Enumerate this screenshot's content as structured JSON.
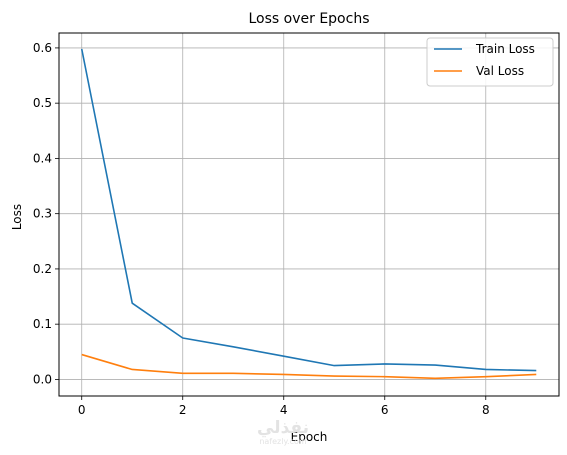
{
  "chart_data": {
    "type": "line",
    "title": "Loss over Epochs",
    "xlabel": "Epoch",
    "ylabel": "Loss",
    "x": [
      0,
      1,
      2,
      3,
      4,
      5,
      6,
      7,
      8,
      9
    ],
    "xlim": [
      -0.45,
      9.45
    ],
    "ylim": [
      -0.03,
      0.627
    ],
    "xticks": [
      0,
      2,
      4,
      6,
      8
    ],
    "yticks": [
      0.0,
      0.1,
      0.2,
      0.3,
      0.4,
      0.5,
      0.6
    ],
    "xtick_labels": [
      "0",
      "2",
      "4",
      "6",
      "8"
    ],
    "ytick_labels": [
      "0.0",
      "0.1",
      "0.2",
      "0.3",
      "0.4",
      "0.5",
      "0.6"
    ],
    "grid": true,
    "legend_position": "top-right",
    "series": [
      {
        "name": "Train Loss",
        "color": "#1f77b4",
        "values": [
          0.598,
          0.138,
          0.075,
          0.059,
          0.042,
          0.025,
          0.028,
          0.026,
          0.018,
          0.016
        ]
      },
      {
        "name": "Val Loss",
        "color": "#ff7f0e",
        "values": [
          0.045,
          0.018,
          0.011,
          0.011,
          0.009,
          0.006,
          0.005,
          0.002,
          0.005,
          0.009
        ]
      }
    ]
  },
  "watermark": {
    "main": "نفذلي",
    "sub": "nafezly.com"
  }
}
